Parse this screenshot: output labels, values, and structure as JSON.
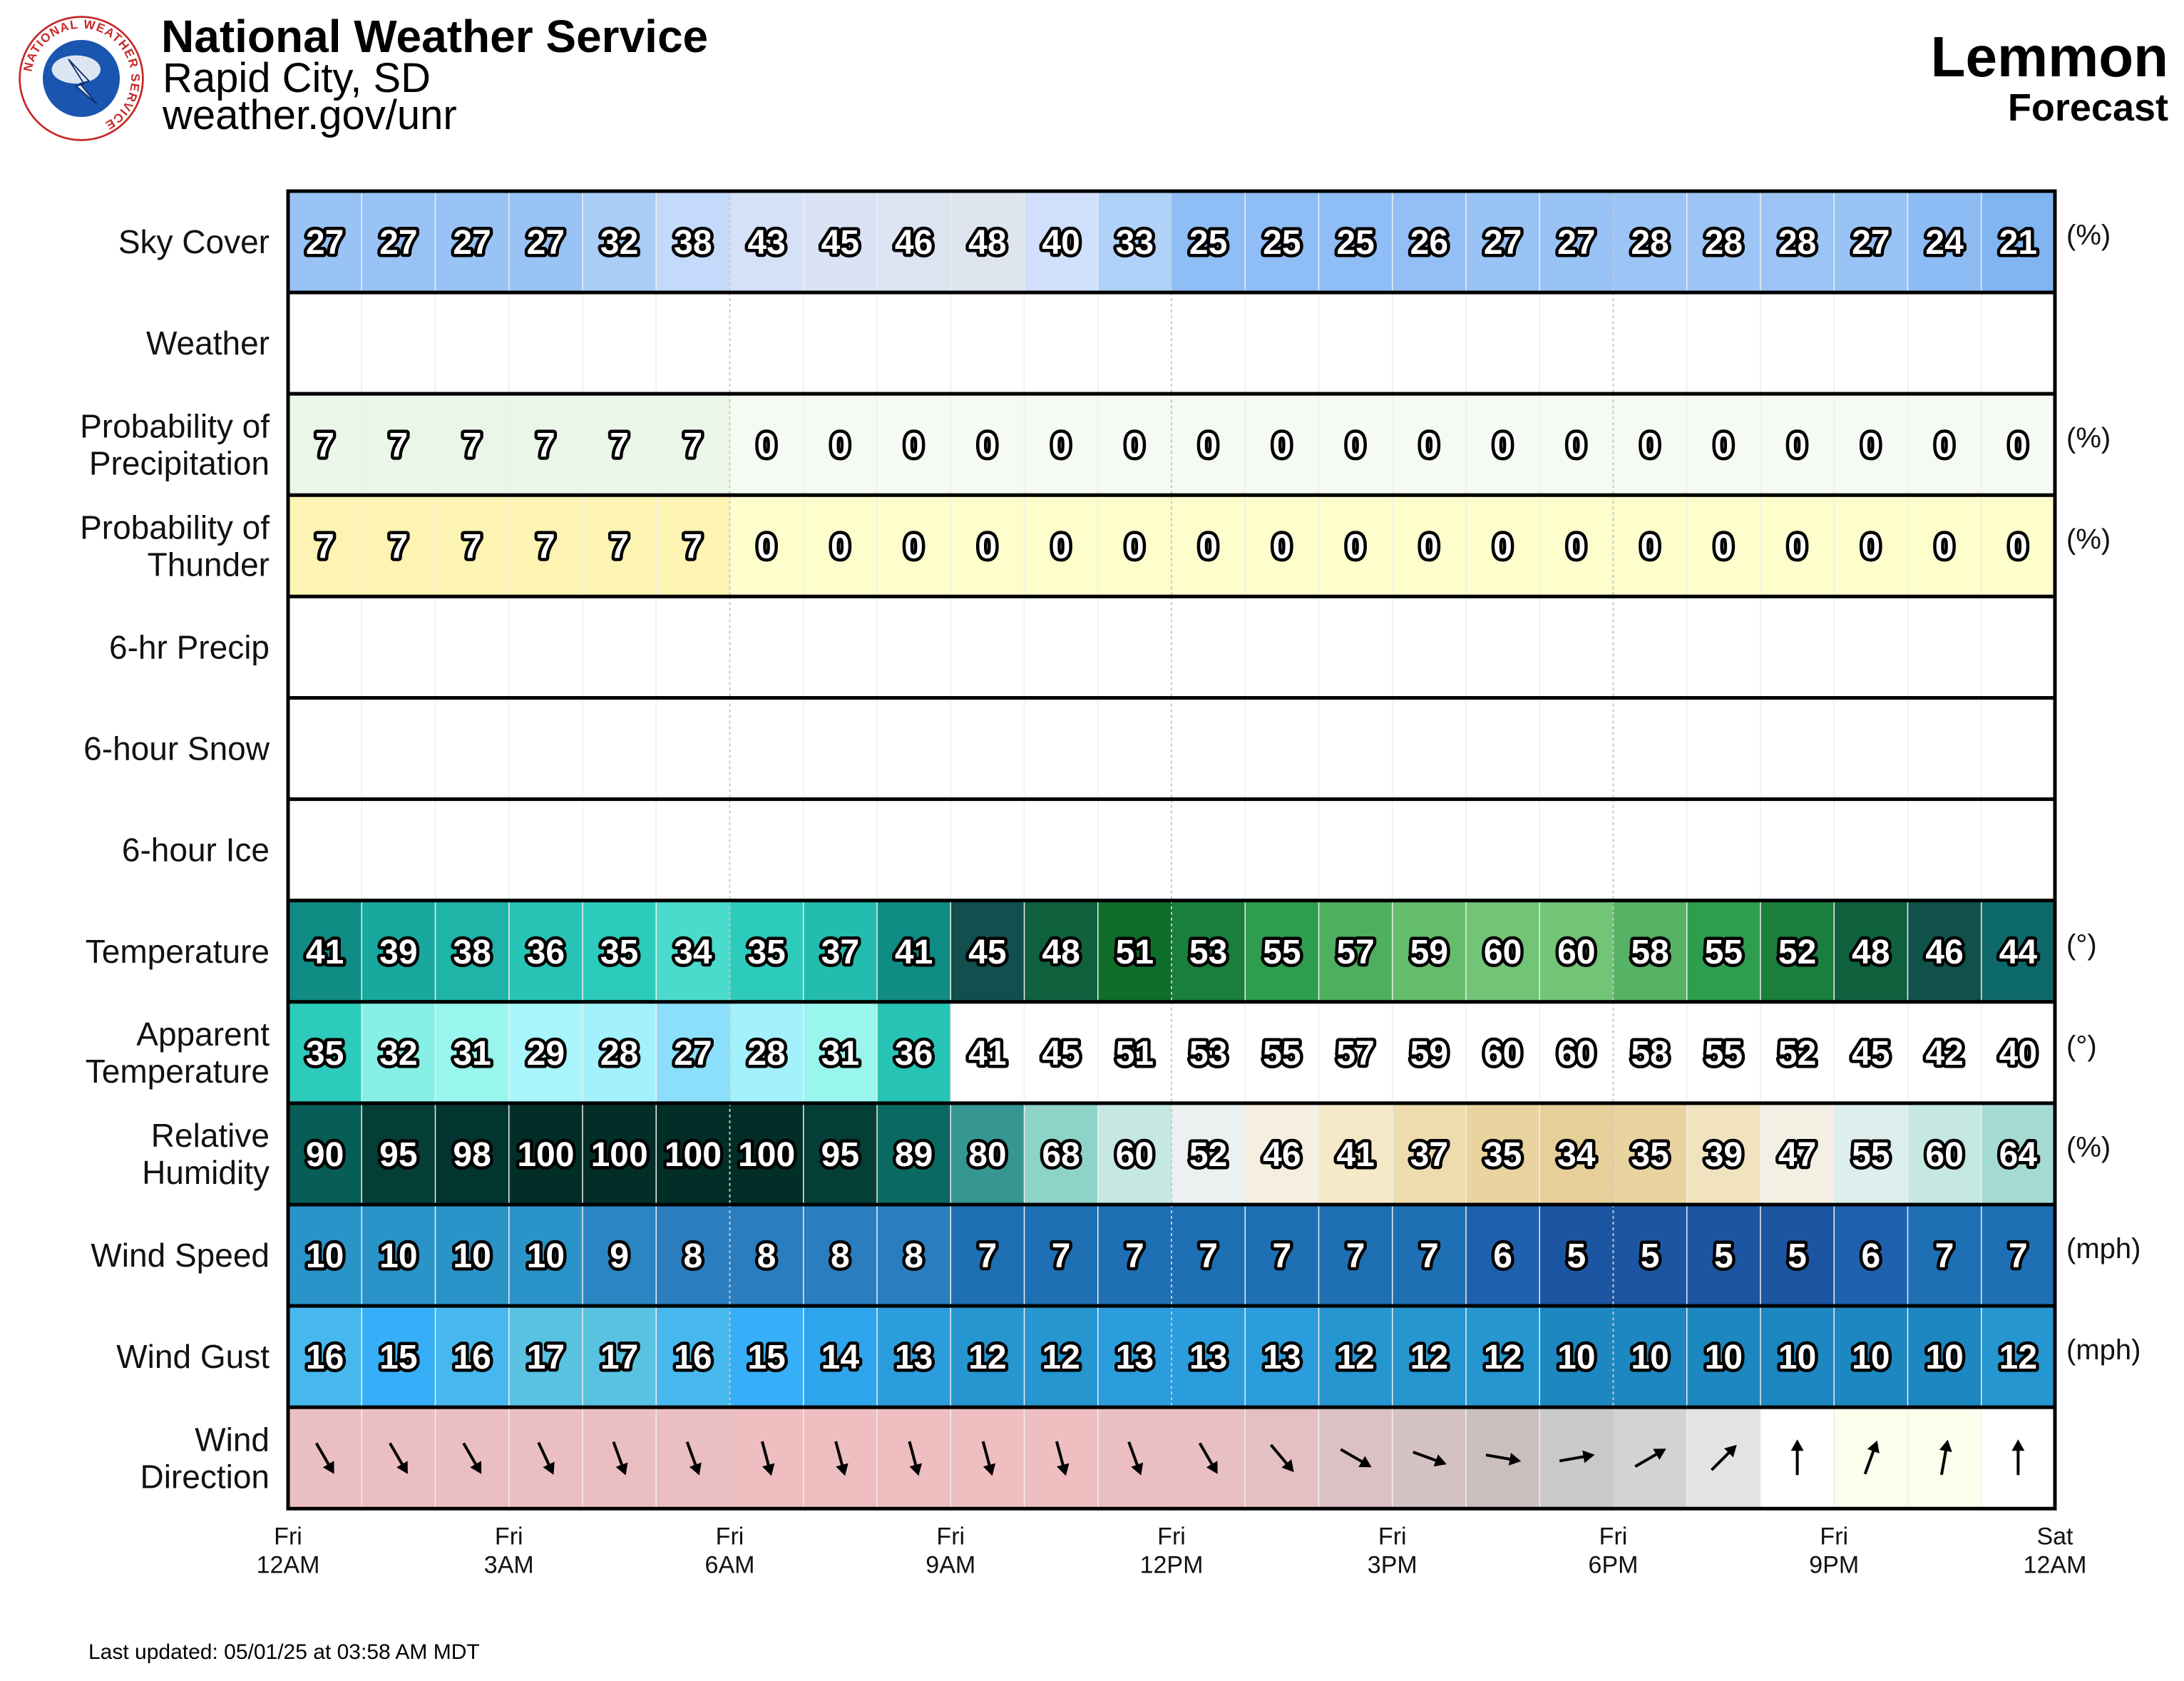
{
  "header": {
    "org": "National Weather Service",
    "office": "Rapid City, SD",
    "url": "weather.gov/unr",
    "location": "Lemmon",
    "subtitle": "Forecast",
    "logo_ring_text": "NATIONAL WEATHER SERVICE"
  },
  "footer": {
    "updated": "Last updated: 05/01/25 at 03:58 AM MDT"
  },
  "chart_data": {
    "type": "table",
    "hours": [
      "Fri 12AM",
      "Fri 1AM",
      "Fri 2AM",
      "Fri 3AM",
      "Fri 4AM",
      "Fri 5AM",
      "Fri 6AM",
      "Fri 7AM",
      "Fri 8AM",
      "Fri 9AM",
      "Fri 10AM",
      "Fri 11AM",
      "Fri 12PM",
      "Fri 1PM",
      "Fri 2PM",
      "Fri 3PM",
      "Fri 4PM",
      "Fri 5PM",
      "Fri 6PM",
      "Fri 7PM",
      "Fri 8PM",
      "Fri 9PM",
      "Fri 10PM",
      "Fri 11PM"
    ],
    "x_ticks": [
      {
        "line1": "Fri",
        "line2": "12AM"
      },
      {
        "line1": "Fri",
        "line2": "3AM"
      },
      {
        "line1": "Fri",
        "line2": "6AM"
      },
      {
        "line1": "Fri",
        "line2": "9AM"
      },
      {
        "line1": "Fri",
        "line2": "12PM"
      },
      {
        "line1": "Fri",
        "line2": "3PM"
      },
      {
        "line1": "Fri",
        "line2": "6PM"
      },
      {
        "line1": "Fri",
        "line2": "9PM"
      },
      {
        "line1": "Sat",
        "line2": "12AM"
      }
    ],
    "rows": [
      {
        "label": [
          "Sky Cover"
        ],
        "unit": "(%)",
        "values": [
          27,
          27,
          27,
          27,
          32,
          38,
          43,
          45,
          46,
          48,
          40,
          33,
          25,
          25,
          25,
          26,
          27,
          27,
          28,
          28,
          28,
          27,
          24,
          21
        ],
        "colors": [
          "#99c3f5",
          "#99c3f5",
          "#99c3f5",
          "#99c3f5",
          "#a9cdf7",
          "#c3dafa",
          "#d4e1f7",
          "#d9e3f4",
          "#dce4f2",
          "#dfe5ef",
          "#d0e0fc",
          "#b0d2f8",
          "#8fbdf6",
          "#8fbdf6",
          "#8fbdf6",
          "#93bff6",
          "#99c3f5",
          "#99c3f5",
          "#9cc5f5",
          "#9cc5f5",
          "#9cc5f5",
          "#99c3f5",
          "#8dbcf5",
          "#80b5f2"
        ]
      },
      {
        "label": [
          "Weather"
        ],
        "unit": "",
        "values": [],
        "colors": []
      },
      {
        "label": [
          "Probability of",
          "Precipitation"
        ],
        "unit": "(%)",
        "values": [
          7,
          7,
          7,
          7,
          7,
          7,
          0,
          0,
          0,
          0,
          0,
          0,
          0,
          0,
          0,
          0,
          0,
          0,
          0,
          0,
          0,
          0,
          0,
          0
        ],
        "colors": [
          "#eaf6e8",
          "#eaf6e8",
          "#eaf6e8",
          "#eaf6e8",
          "#eaf6e8",
          "#eaf6e8",
          "#f5faf3",
          "#f5faf3",
          "#f5faf3",
          "#f5faf3",
          "#f5faf3",
          "#f5faf3",
          "#f5faf3",
          "#f5faf3",
          "#f5faf3",
          "#f5faf3",
          "#f5faf3",
          "#f5faf3",
          "#f5faf3",
          "#f5faf3",
          "#f5faf3",
          "#f5faf3",
          "#f5faf3",
          "#f5faf3"
        ]
      },
      {
        "label": [
          "Probability of",
          "Thunder"
        ],
        "unit": "(%)",
        "values": [
          7,
          7,
          7,
          7,
          7,
          7,
          0,
          0,
          0,
          0,
          0,
          0,
          0,
          0,
          0,
          0,
          0,
          0,
          0,
          0,
          0,
          0,
          0,
          0
        ],
        "colors": [
          "#fdf3b2",
          "#fdf3b2",
          "#fdf3b2",
          "#fdf3b2",
          "#fdf3b2",
          "#fdf3b2",
          "#fefdcc",
          "#fefdcc",
          "#fefdcc",
          "#fefdcc",
          "#fefdcc",
          "#fefdcc",
          "#fefdcc",
          "#fefdcc",
          "#fefdcc",
          "#fefdcc",
          "#fefdcc",
          "#fefdcc",
          "#fefdcc",
          "#fefdcc",
          "#fefdcc",
          "#fefdcc",
          "#fefdcc",
          "#fefdcc"
        ]
      },
      {
        "label": [
          "6-hr Precip"
        ],
        "unit": "",
        "values": [],
        "colors": []
      },
      {
        "label": [
          "6-hour Snow"
        ],
        "unit": "",
        "values": [],
        "colors": []
      },
      {
        "label": [
          "6-hour Ice"
        ],
        "unit": "",
        "values": [],
        "colors": []
      },
      {
        "label": [
          "Temperature"
        ],
        "unit": "(°)",
        "values": [
          41,
          39,
          38,
          36,
          35,
          34,
          35,
          37,
          41,
          45,
          48,
          51,
          53,
          55,
          57,
          59,
          60,
          60,
          58,
          55,
          52,
          48,
          46,
          44
        ],
        "colors": [
          "#0f8c84",
          "#19a89e",
          "#1fb4a8",
          "#27c4b6",
          "#2dcbbc",
          "#4adbcc",
          "#2dcbbc",
          "#23bcae",
          "#0f8c84",
          "#124f4f",
          "#10623f",
          "#0e6e2a",
          "#1a7f3c",
          "#2e9e4e",
          "#4daf5f",
          "#64bd6c",
          "#72c476",
          "#72c476",
          "#56b264",
          "#2e9e4e",
          "#1a7f3c",
          "#10623f",
          "#10524a",
          "#0e6a6a"
        ]
      },
      {
        "label": [
          "Apparent",
          "Temperature"
        ],
        "unit": "(°)",
        "values": [
          35,
          32,
          31,
          29,
          28,
          27,
          28,
          31,
          36,
          41,
          45,
          51,
          53,
          55,
          57,
          59,
          60,
          60,
          58,
          55,
          52,
          45,
          42,
          40
        ],
        "colors": [
          "#2dcbbc",
          "#86f0e6",
          "#98f6ec",
          "#a8f6fc",
          "#a3f1fc",
          "#8bdffc",
          "#a3f1fc",
          "#98f6ec",
          "#27c4b6",
          "#ffffff",
          "#ffffff",
          "#ffffff",
          "#ffffff",
          "#ffffff",
          "#ffffff",
          "#ffffff",
          "#ffffff",
          "#ffffff",
          "#ffffff",
          "#ffffff",
          "#ffffff",
          "#ffffff",
          "#ffffff",
          "#ffffff"
        ]
      },
      {
        "label": [
          "Relative",
          "Humidity"
        ],
        "unit": "(%)",
        "values": [
          90,
          95,
          98,
          100,
          100,
          100,
          100,
          95,
          89,
          80,
          68,
          60,
          52,
          46,
          41,
          37,
          35,
          34,
          35,
          39,
          47,
          55,
          60,
          64
        ],
        "colors": [
          "#075e57",
          "#043e37",
          "#033530",
          "#022e28",
          "#022e28",
          "#022e28",
          "#022e28",
          "#043e37",
          "#0a6a62",
          "#369792",
          "#8ed3c7",
          "#c6e8e2",
          "#ebf1f1",
          "#f6eee0",
          "#f5e9c8",
          "#efdcae",
          "#e9d39f",
          "#e6cf98",
          "#e9d39f",
          "#f2e3c0",
          "#f4efe3",
          "#dcefed",
          "#c6e8e2",
          "#a6dbd3"
        ]
      },
      {
        "label": [
          "Wind Speed"
        ],
        "unit": "(mph)",
        "values": [
          10,
          10,
          10,
          10,
          9,
          8,
          8,
          8,
          8,
          7,
          7,
          7,
          7,
          7,
          7,
          7,
          6,
          5,
          5,
          5,
          5,
          6,
          7,
          7
        ],
        "colors": [
          "#2a93c8",
          "#2a93c8",
          "#2a93c8",
          "#2a93c8",
          "#2a86c2",
          "#2a7ec0",
          "#2a7ec0",
          "#2a7ec0",
          "#2a7ec0",
          "#1f6fb4",
          "#1f6fb4",
          "#1f6fb4",
          "#1f6fb4",
          "#1f6fb4",
          "#1f6fb4",
          "#1f6fb4",
          "#1f61ae",
          "#1c55a2",
          "#1c55a2",
          "#1c55a2",
          "#1c55a2",
          "#1f61ae",
          "#1f6fb4",
          "#1f6fb4"
        ]
      },
      {
        "label": [
          "Wind Gust"
        ],
        "unit": "(mph)",
        "values": [
          16,
          15,
          16,
          17,
          17,
          16,
          15,
          14,
          13,
          12,
          12,
          13,
          13,
          13,
          12,
          12,
          12,
          10,
          10,
          10,
          10,
          10,
          10,
          12
        ],
        "colors": [
          "#47b8ee",
          "#36aef8",
          "#47b8ee",
          "#58c2e0",
          "#58c2e0",
          "#47b8ee",
          "#36aef8",
          "#2ea5ec",
          "#2b9cdc",
          "#2596d0",
          "#2596d0",
          "#2b9cdc",
          "#2b9cdc",
          "#2b9cdc",
          "#2596d0",
          "#2596d0",
          "#2596d0",
          "#1c87c0",
          "#1c87c0",
          "#1c87c0",
          "#1c87c0",
          "#1c87c0",
          "#1c87c0",
          "#2596d0"
        ]
      },
      {
        "label": [
          "Wind",
          "Direction"
        ],
        "unit": "",
        "values": [],
        "directions_deg": [
          330,
          330,
          330,
          335,
          340,
          340,
          345,
          345,
          345,
          345,
          345,
          340,
          330,
          320,
          300,
          290,
          280,
          260,
          240,
          225,
          180,
          200,
          190,
          180
        ],
        "colors": [
          "#ebbfc2",
          "#ebbfc2",
          "#ebbfc2",
          "#ebbfc2",
          "#ebbfc2",
          "#ebbfc2",
          "#eebec1",
          "#eebec1",
          "#eebec1",
          "#eebec1",
          "#eebec1",
          "#ebbfc2",
          "#e8bfc2",
          "#e4c0c3",
          "#dcc1c4",
          "#d4c1c4",
          "#cabebf",
          "#c9c9c9",
          "#d3d3d3",
          "#e3e3e3",
          "#ffffff",
          "#fcfdec",
          "#fcfdec",
          "#ffffff"
        ]
      }
    ]
  }
}
